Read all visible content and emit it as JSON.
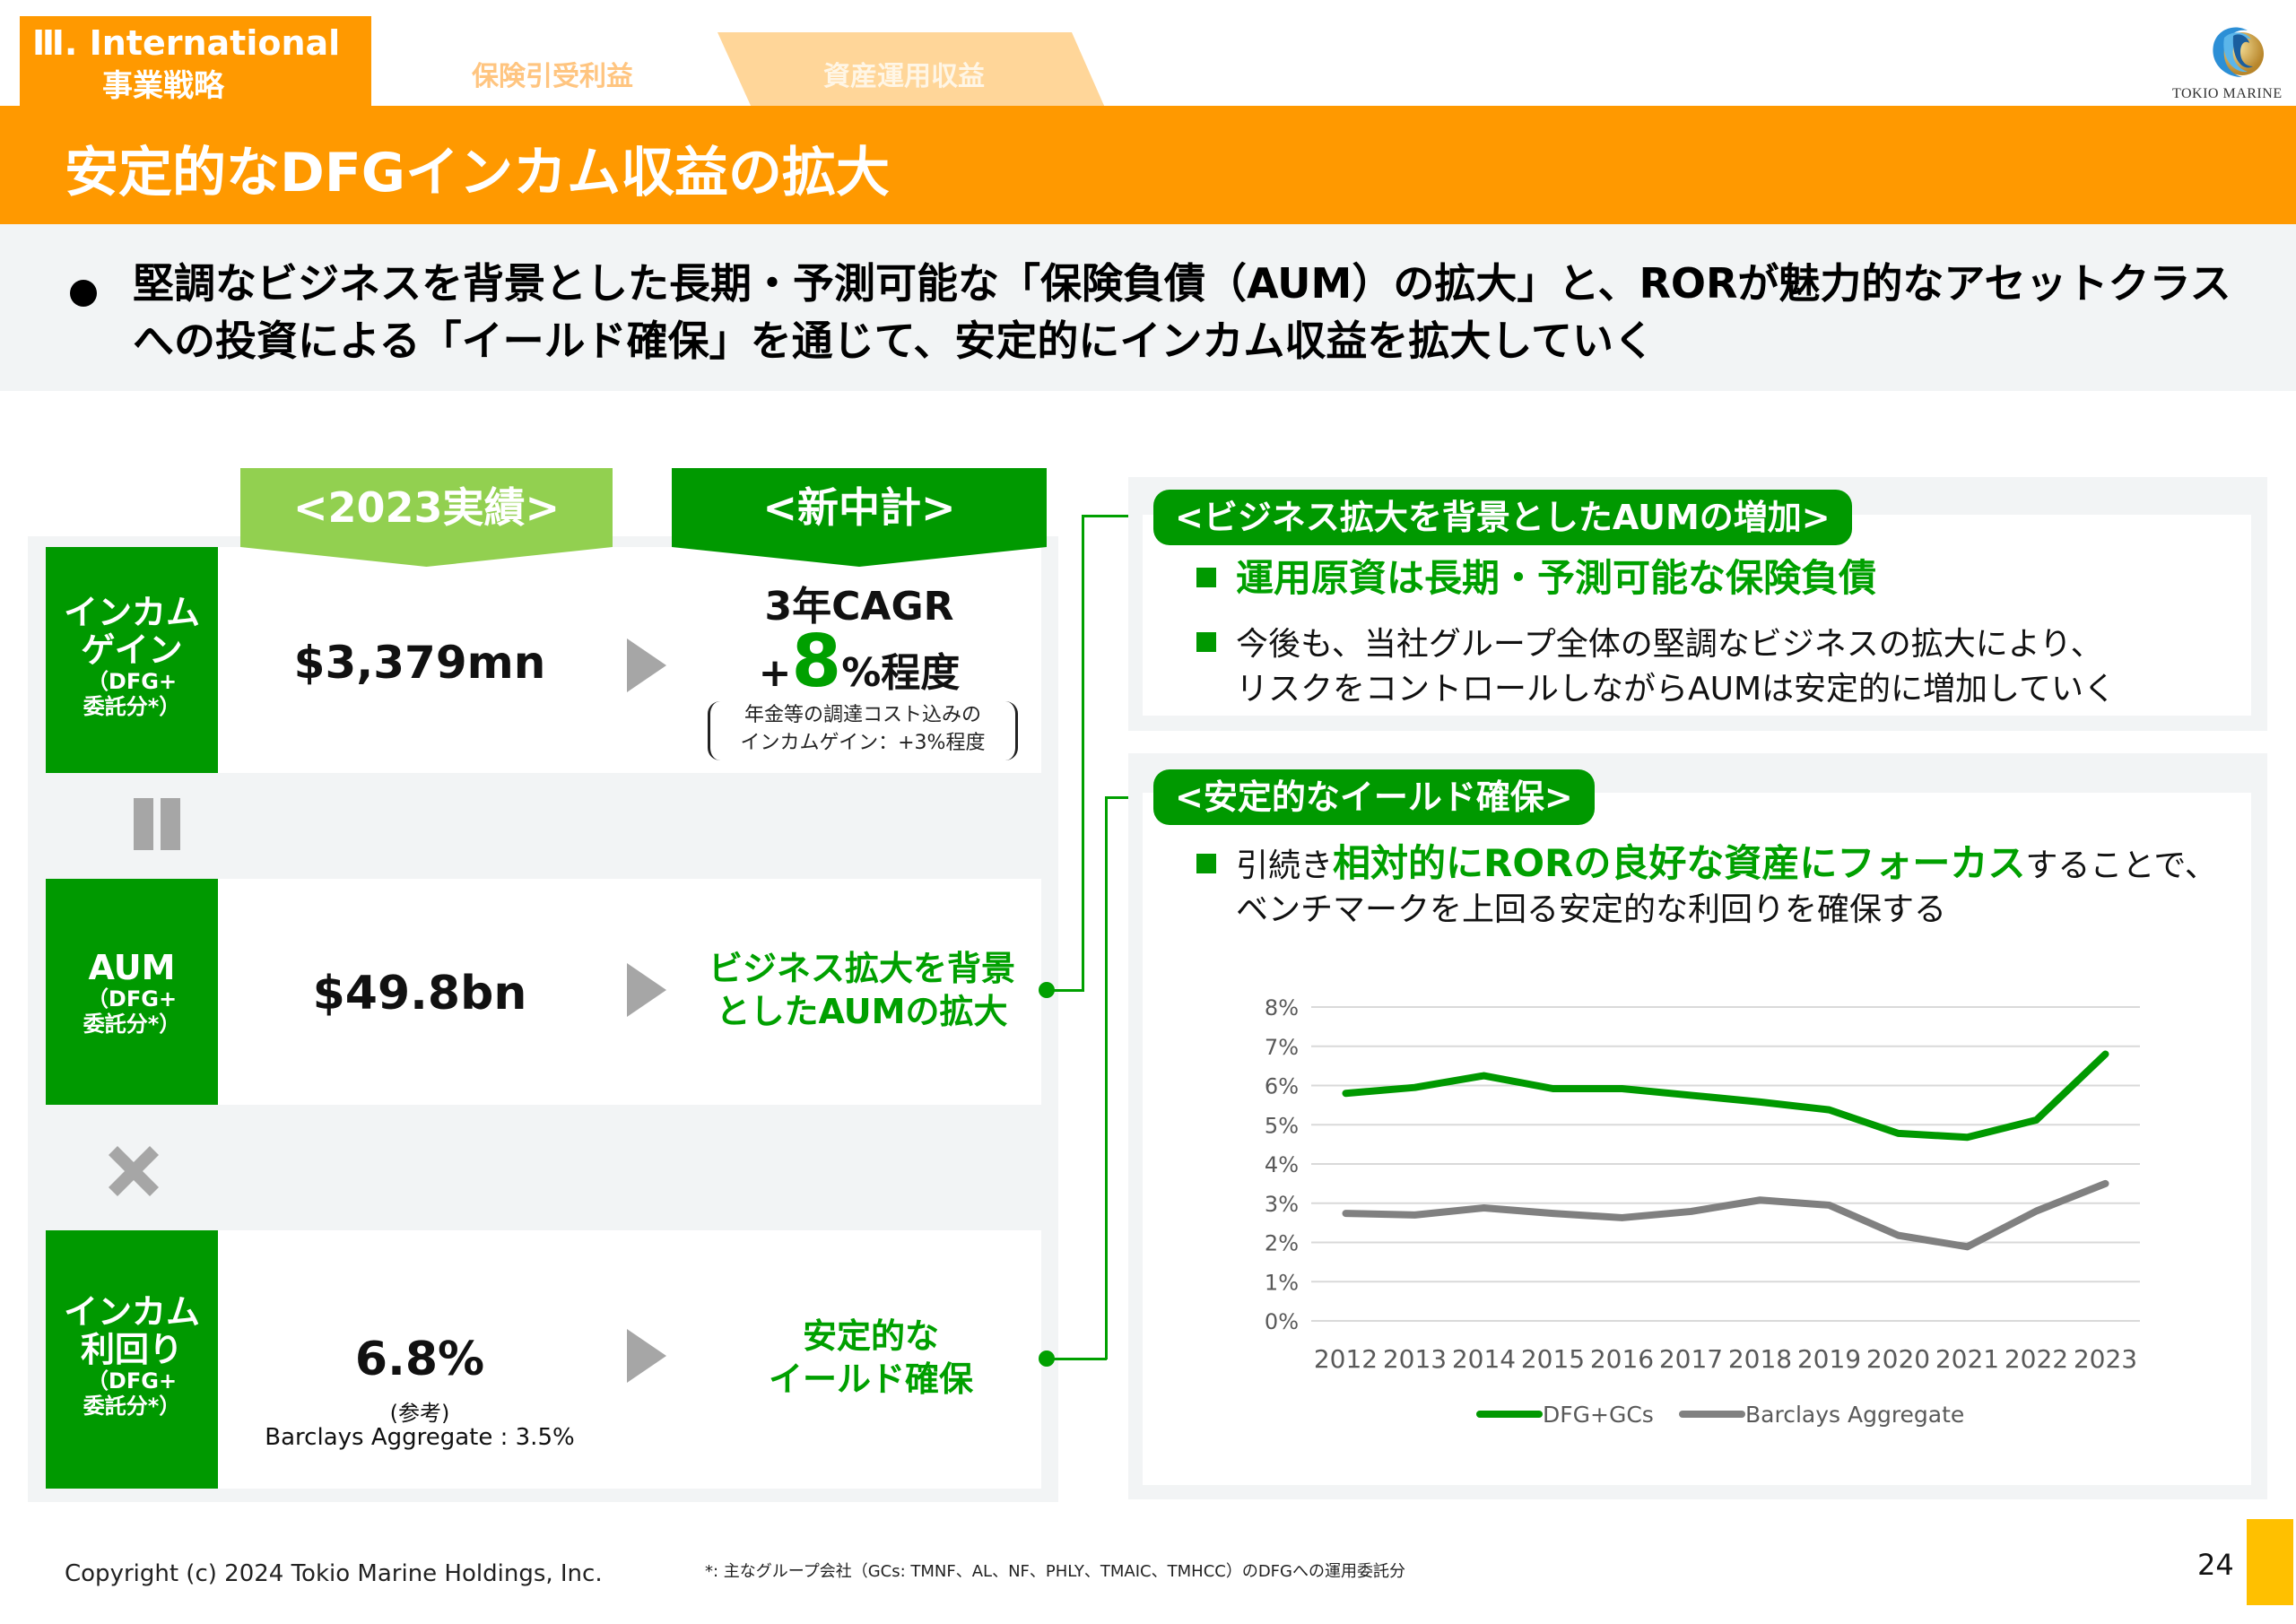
{
  "tabs": {
    "active_line1": "Ⅲ. International",
    "active_line2": "事業戦略",
    "tab2": "保険引受利益",
    "tab3": "資産運用収益"
  },
  "logo": {
    "text": "TOKIO MARINE"
  },
  "title": "安定的なDFGインカム収益の拡大",
  "subtitle": "堅調なビジネスを背景とした長期・予測可能な「保険負債（AUM）の拡大」と、RORが魅力的なアセットクラスへの投資による「イールド確保」を通じて、安定的にインカム収益を拡大していく",
  "left": {
    "header_actual": "<2023実績>",
    "header_plan": "<新中計>",
    "rows": [
      {
        "label_main": "インカムゲイン",
        "label_main_l1": "インカム",
        "label_main_l2": "ゲイン",
        "label_sub_l1": "（DFG+",
        "label_sub_l2": "委託分*）",
        "actual": "$3,379mn",
        "plan_l1": "3年CAGR",
        "plan_prefix": "+",
        "plan_num": "8",
        "plan_suffix": "%程度",
        "plan_note_l1": "年金等の調達コスト込みの",
        "plan_note_l2": "インカムゲイン：+3%程度"
      },
      {
        "label_main": "AUM",
        "label_sub_l1": "（DFG+",
        "label_sub_l2": "委託分*）",
        "actual": "$49.8bn",
        "plan_l1": "ビジネス拡大を背景",
        "plan_l2": "としたAUMの拡大"
      },
      {
        "label_main_l1": "インカム",
        "label_main_l2": "利回り",
        "label_sub_l1": "（DFG+",
        "label_sub_l2": "委託分*）",
        "actual": "6.8%",
        "actual_ref": "(参考)",
        "actual_ref2": "Barclays Aggregate : 3.5%",
        "plan_l1": "安定的な",
        "plan_l2": "イールド確保"
      }
    ],
    "operators": [
      "equals",
      "multiply"
    ]
  },
  "right": {
    "box1": {
      "pill": "<ビジネス拡大を背景としたAUMの増加>",
      "bullet1": "運用原資は長期・予測可能な保険負債",
      "bullet2_l1": "今後も、当社グループ全体の堅調なビジネスの拡大により、",
      "bullet2_l2": "リスクをコントロールしながらAUMは安定的に増加していく"
    },
    "box2": {
      "pill": "<安定的なイールド確保>",
      "bullet1_pre": "引続き",
      "bullet1_hl": "相対的にRORの良好な資産にフォーカス",
      "bullet1_post": "することで、",
      "bullet1_l2": "ベンチマークを上回る安定的な利回りを確保する"
    }
  },
  "chart_data": {
    "type": "line",
    "title": "",
    "xlabel": "",
    "ylabel": "",
    "x": [
      "2012",
      "2013",
      "2014",
      "2015",
      "2016",
      "2017",
      "2018",
      "2019",
      "2020",
      "2021",
      "2022",
      "2023"
    ],
    "ylim": [
      0,
      8
    ],
    "yticks": [
      "0%",
      "1%",
      "2%",
      "3%",
      "4%",
      "5%",
      "6%",
      "7%",
      "8%"
    ],
    "grid": true,
    "legend_position": "bottom",
    "series": [
      {
        "name": "DFG+GCs",
        "color": "#009900",
        "values": [
          5.8,
          5.95,
          6.25,
          5.92,
          5.92,
          5.75,
          5.58,
          5.38,
          4.78,
          4.68,
          5.12,
          6.8
        ]
      },
      {
        "name": "Barclays Aggregate",
        "color": "#808080",
        "values": [
          2.74,
          2.7,
          2.88,
          2.74,
          2.63,
          2.79,
          3.08,
          2.95,
          2.18,
          1.89,
          2.8,
          3.5
        ]
      }
    ]
  },
  "footer": {
    "copyright": "Copyright (c) 2024 Tokio Marine Holdings, Inc.",
    "note": "*: 主なグループ会社（GCs: TMNF、AL、NF、PHLY、TMAIC、TMHCC）のDFGへの運用委託分",
    "page": "24"
  },
  "colors": {
    "orange": "#FF9900",
    "green": "#009900",
    "light_green": "#92D050",
    "page_bar": "#FFC000"
  }
}
